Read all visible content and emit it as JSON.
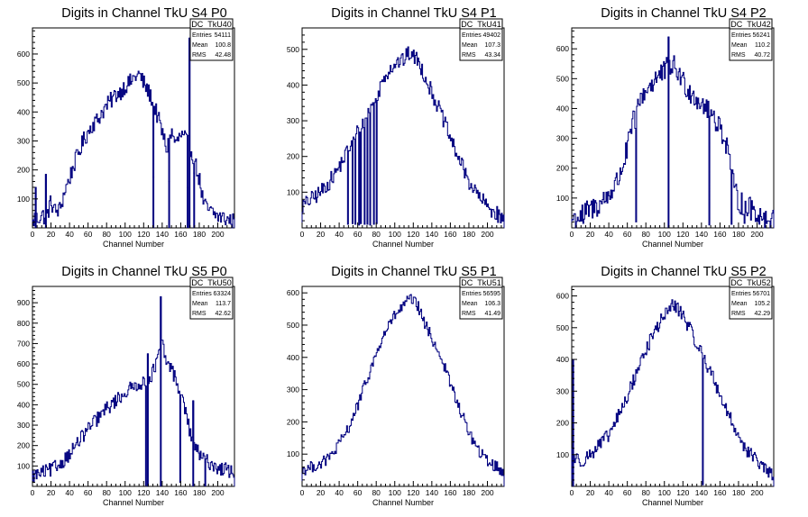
{
  "colors": {
    "histogram": "#00007f",
    "axis": "#000000",
    "background": "#ffffff"
  },
  "chart_data": [
    {
      "type": "histogram",
      "title": "Digits in Channel TkU S4 P0",
      "xlabel": "Channel Number",
      "ylabel": "",
      "xlim": [
        0,
        218
      ],
      "ylim": [
        0,
        690
      ],
      "xticks": [
        0,
        20,
        40,
        60,
        80,
        100,
        120,
        140,
        160,
        180,
        200
      ],
      "yticks": [
        100,
        200,
        300,
        400,
        500,
        600
      ],
      "stats": {
        "name": "DC_TkU40",
        "rows": [
          [
            "Entries",
            "54111"
          ],
          [
            "Mean",
            "100.8"
          ],
          [
            "RMS",
            "42.48"
          ]
        ]
      },
      "baseline": [
        [
          0,
          10
        ],
        [
          3,
          40
        ],
        [
          5,
          30
        ],
        [
          10,
          45
        ],
        [
          15,
          35
        ],
        [
          20,
          90
        ],
        [
          25,
          55
        ],
        [
          30,
          65
        ],
        [
          35,
          130
        ],
        [
          40,
          170
        ],
        [
          45,
          220
        ],
        [
          50,
          260
        ],
        [
          55,
          300
        ],
        [
          60,
          330
        ],
        [
          65,
          360
        ],
        [
          70,
          370
        ],
        [
          75,
          400
        ],
        [
          80,
          420
        ],
        [
          85,
          440
        ],
        [
          90,
          460
        ],
        [
          95,
          470
        ],
        [
          100,
          490
        ],
        [
          105,
          500
        ],
        [
          110,
          520
        ],
        [
          115,
          530
        ],
        [
          120,
          500
        ],
        [
          125,
          470
        ],
        [
          130,
          440
        ],
        [
          140,
          330
        ],
        [
          145,
          270
        ],
        [
          150,
          330
        ],
        [
          155,
          290
        ],
        [
          160,
          320
        ],
        [
          165,
          310
        ],
        [
          170,
          280
        ],
        [
          175,
          230
        ],
        [
          180,
          170
        ],
        [
          185,
          80
        ],
        [
          190,
          60
        ],
        [
          200,
          40
        ],
        [
          210,
          30
        ],
        [
          218,
          20
        ]
      ],
      "noise": 30,
      "spikes": [
        [
          3,
          140
        ],
        [
          14,
          185
        ],
        [
          130,
          175
        ],
        [
          147,
          160
        ],
        [
          167,
          140
        ],
        [
          169,
          655
        ],
        [
          174,
          190
        ]
      ],
      "dips": []
    },
    {
      "type": "histogram",
      "title": "Digits in Channel TkU S4 P1",
      "xlabel": "Channel Number",
      "ylabel": "",
      "xlim": [
        0,
        218
      ],
      "ylim": [
        0,
        560
      ],
      "xticks": [
        0,
        20,
        40,
        60,
        80,
        100,
        120,
        140,
        160,
        180,
        200
      ],
      "yticks": [
        100,
        200,
        300,
        400,
        500
      ],
      "stats": {
        "name": "DC_TkU41",
        "rows": [
          [
            "Entries",
            "49402"
          ],
          [
            "Mean",
            "107.3"
          ],
          [
            "RMS",
            "43.34"
          ]
        ]
      },
      "baseline": [
        [
          0,
          60
        ],
        [
          10,
          80
        ],
        [
          20,
          100
        ],
        [
          30,
          130
        ],
        [
          40,
          170
        ],
        [
          50,
          220
        ],
        [
          60,
          270
        ],
        [
          70,
          320
        ],
        [
          80,
          360
        ],
        [
          85,
          400
        ],
        [
          90,
          430
        ],
        [
          100,
          460
        ],
        [
          110,
          470
        ],
        [
          115,
          490
        ],
        [
          120,
          480
        ],
        [
          125,
          470
        ],
        [
          130,
          440
        ],
        [
          140,
          380
        ],
        [
          150,
          320
        ],
        [
          160,
          250
        ],
        [
          170,
          190
        ],
        [
          180,
          130
        ],
        [
          190,
          90
        ],
        [
          200,
          60
        ],
        [
          210,
          40
        ],
        [
          218,
          20
        ]
      ],
      "noise": 22,
      "spikes": [],
      "dips": [
        [
          49,
          10
        ],
        [
          54,
          12
        ],
        [
          57,
          10
        ],
        [
          61,
          8
        ],
        [
          63,
          12
        ],
        [
          67,
          10
        ],
        [
          70,
          10
        ],
        [
          73,
          8
        ],
        [
          77,
          10
        ],
        [
          80,
          12
        ]
      ]
    },
    {
      "type": "histogram",
      "title": "Digits in Channel TkU S4 P2",
      "xlabel": "Channel Number",
      "ylabel": "",
      "xlim": [
        0,
        218
      ],
      "ylim": [
        0,
        670
      ],
      "xticks": [
        0,
        20,
        40,
        60,
        80,
        100,
        120,
        140,
        160,
        180,
        200
      ],
      "yticks": [
        100,
        200,
        300,
        400,
        500,
        600
      ],
      "stats": {
        "name": "DC_TkU42",
        "rows": [
          [
            "Entries",
            "56241"
          ],
          [
            "Mean",
            "110.2"
          ],
          [
            "RMS",
            "40.72"
          ]
        ]
      },
      "baseline": [
        [
          0,
          30
        ],
        [
          10,
          40
        ],
        [
          20,
          60
        ],
        [
          30,
          80
        ],
        [
          40,
          110
        ],
        [
          50,
          160
        ],
        [
          55,
          210
        ],
        [
          60,
          260
        ],
        [
          65,
          340
        ],
        [
          70,
          380
        ],
        [
          75,
          440
        ],
        [
          80,
          460
        ],
        [
          90,
          500
        ],
        [
          100,
          520
        ],
        [
          105,
          550
        ],
        [
          110,
          540
        ],
        [
          115,
          520
        ],
        [
          120,
          490
        ],
        [
          130,
          450
        ],
        [
          140,
          420
        ],
        [
          150,
          390
        ],
        [
          160,
          340
        ],
        [
          165,
          300
        ],
        [
          170,
          250
        ],
        [
          175,
          130
        ],
        [
          180,
          90
        ],
        [
          190,
          70
        ],
        [
          200,
          50
        ],
        [
          210,
          30
        ],
        [
          218,
          20
        ]
      ],
      "noise": 40,
      "spikes": [
        [
          104,
          640
        ]
      ],
      "dips": [
        [
          12,
          15
        ],
        [
          69,
          20
        ],
        [
          148,
          10
        ],
        [
          172,
          12
        ],
        [
          186,
          15
        ]
      ]
    },
    {
      "type": "histogram",
      "title": "Digits in Channel TkU S5 P0",
      "xlabel": "Channel Number",
      "ylabel": "",
      "xlim": [
        0,
        218
      ],
      "ylim": [
        0,
        980
      ],
      "xticks": [
        0,
        20,
        40,
        60,
        80,
        100,
        120,
        140,
        160,
        180,
        200
      ],
      "yticks": [
        100,
        200,
        300,
        400,
        500,
        600,
        700,
        800,
        900
      ],
      "stats": {
        "name": "DC_TkU50",
        "rows": [
          [
            "Entries",
            "63324"
          ],
          [
            "Mean",
            "113.7"
          ],
          [
            "RMS",
            "42.62"
          ]
        ]
      },
      "baseline": [
        [
          0,
          50
        ],
        [
          10,
          65
        ],
        [
          20,
          80
        ],
        [
          30,
          110
        ],
        [
          40,
          160
        ],
        [
          50,
          220
        ],
        [
          60,
          280
        ],
        [
          70,
          330
        ],
        [
          80,
          380
        ],
        [
          90,
          420
        ],
        [
          100,
          460
        ],
        [
          110,
          490
        ],
        [
          115,
          510
        ],
        [
          120,
          500
        ],
        [
          125,
          520
        ],
        [
          130,
          560
        ],
        [
          135,
          620
        ],
        [
          140,
          700
        ],
        [
          145,
          600
        ],
        [
          150,
          580
        ],
        [
          155,
          520
        ],
        [
          160,
          460
        ],
        [
          165,
          380
        ],
        [
          170,
          260
        ],
        [
          175,
          210
        ],
        [
          180,
          150
        ],
        [
          190,
          120
        ],
        [
          200,
          90
        ],
        [
          210,
          80
        ],
        [
          218,
          70
        ]
      ],
      "noise": 35,
      "spikes": [
        [
          124,
          650
        ],
        [
          138,
          930
        ],
        [
          173,
          420
        ],
        [
          186,
          120
        ]
      ],
      "dips": [
        [
          122,
          5
        ],
        [
          159,
          20
        ]
      ]
    },
    {
      "type": "histogram",
      "title": "Digits in Channel TkU S5 P1",
      "xlabel": "Channel Number",
      "ylabel": "",
      "xlim": [
        0,
        218
      ],
      "ylim": [
        0,
        620
      ],
      "xticks": [
        0,
        20,
        40,
        60,
        80,
        100,
        120,
        140,
        160,
        180,
        200
      ],
      "yticks": [
        100,
        200,
        300,
        400,
        500,
        600
      ],
      "stats": {
        "name": "DC_TkU51",
        "rows": [
          [
            "Entries",
            "56595"
          ],
          [
            "Mean",
            "106.3"
          ],
          [
            "RMS",
            "41.49"
          ]
        ]
      },
      "baseline": [
        [
          0,
          50
        ],
        [
          10,
          60
        ],
        [
          20,
          70
        ],
        [
          30,
          90
        ],
        [
          40,
          130
        ],
        [
          50,
          180
        ],
        [
          60,
          250
        ],
        [
          70,
          330
        ],
        [
          80,
          410
        ],
        [
          90,
          480
        ],
        [
          100,
          530
        ],
        [
          110,
          560
        ],
        [
          115,
          580
        ],
        [
          120,
          575
        ],
        [
          125,
          560
        ],
        [
          130,
          520
        ],
        [
          140,
          460
        ],
        [
          150,
          400
        ],
        [
          160,
          320
        ],
        [
          170,
          240
        ],
        [
          180,
          170
        ],
        [
          190,
          110
        ],
        [
          200,
          80
        ],
        [
          210,
          60
        ],
        [
          218,
          40
        ]
      ],
      "noise": 18,
      "spikes": [],
      "dips": []
    },
    {
      "type": "histogram",
      "title": "Digits in Channel TkU S5 P2",
      "xlabel": "Channel Number",
      "ylabel": "",
      "xlim": [
        0,
        218
      ],
      "ylim": [
        0,
        630
      ],
      "xticks": [
        0,
        20,
        40,
        60,
        80,
        100,
        120,
        140,
        160,
        180,
        200
      ],
      "yticks": [
        100,
        200,
        300,
        400,
        500,
        600
      ],
      "stats": {
        "name": "DC_TkU52",
        "rows": [
          [
            "Entries",
            "56701"
          ],
          [
            "Mean",
            "105.2"
          ],
          [
            "RMS",
            "42.29"
          ]
        ]
      },
      "baseline": [
        [
          0,
          120
        ],
        [
          3,
          90
        ],
        [
          10,
          80
        ],
        [
          20,
          100
        ],
        [
          30,
          130
        ],
        [
          40,
          160
        ],
        [
          50,
          220
        ],
        [
          60,
          280
        ],
        [
          70,
          360
        ],
        [
          80,
          430
        ],
        [
          90,
          490
        ],
        [
          100,
          540
        ],
        [
          105,
          560
        ],
        [
          110,
          570
        ],
        [
          115,
          560
        ],
        [
          120,
          540
        ],
        [
          130,
          480
        ],
        [
          140,
          420
        ],
        [
          150,
          360
        ],
        [
          160,
          290
        ],
        [
          170,
          220
        ],
        [
          180,
          160
        ],
        [
          190,
          110
        ],
        [
          200,
          80
        ],
        [
          210,
          50
        ],
        [
          218,
          30
        ]
      ],
      "noise": 22,
      "spikes": [
        [
          1,
          400
        ]
      ],
      "dips": [
        [
          141,
          5
        ]
      ]
    }
  ]
}
